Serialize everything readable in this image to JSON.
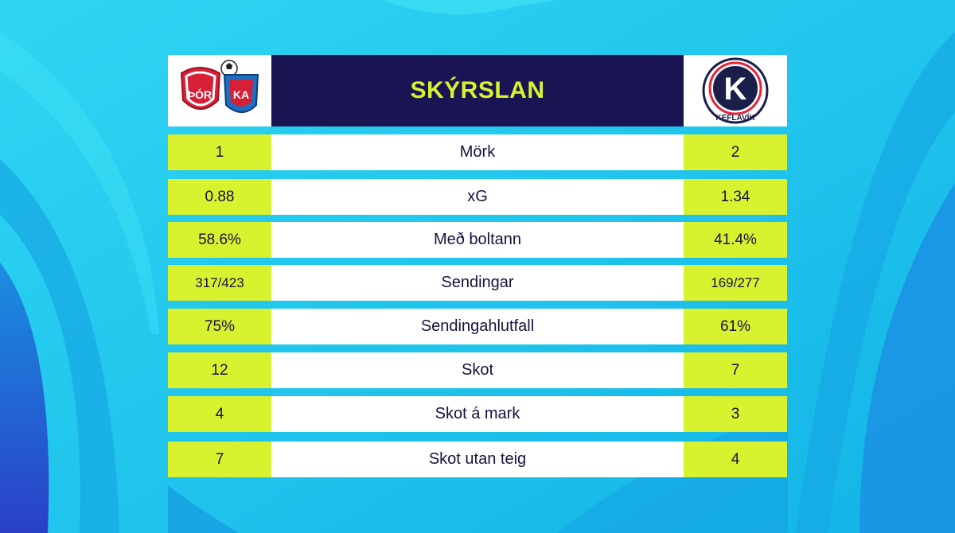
{
  "title": "SKÝRSLAN",
  "home_logo": {
    "icon": "thor-ka-crest-icon",
    "text": "ÞÓR"
  },
  "away_logo": {
    "icon": "keflavik-crest-icon",
    "letter": "K",
    "text": "KEFLAVÍK"
  },
  "colors": {
    "accent": "#d8f230",
    "header_bg": "#1b1452",
    "text": "#16123e",
    "background": "#1ec3ea"
  },
  "stats": [
    {
      "label": "Mörk",
      "home": "1",
      "away": "2"
    },
    {
      "label": "xG",
      "home": "0.88",
      "away": "1.34"
    },
    {
      "label": "Með boltann",
      "home": "58.6%",
      "away": "41.4%"
    },
    {
      "label": "Sendingar",
      "home": "317/423",
      "away": "169/277"
    },
    {
      "label": "Sendingahlutfall",
      "home": "75%",
      "away": "61%"
    },
    {
      "label": "Skot",
      "home": "12",
      "away": "7"
    },
    {
      "label": "Skot á mark",
      "home": "4",
      "away": "3"
    },
    {
      "label": "Skot utan teig",
      "home": "7",
      "away": "4"
    }
  ]
}
